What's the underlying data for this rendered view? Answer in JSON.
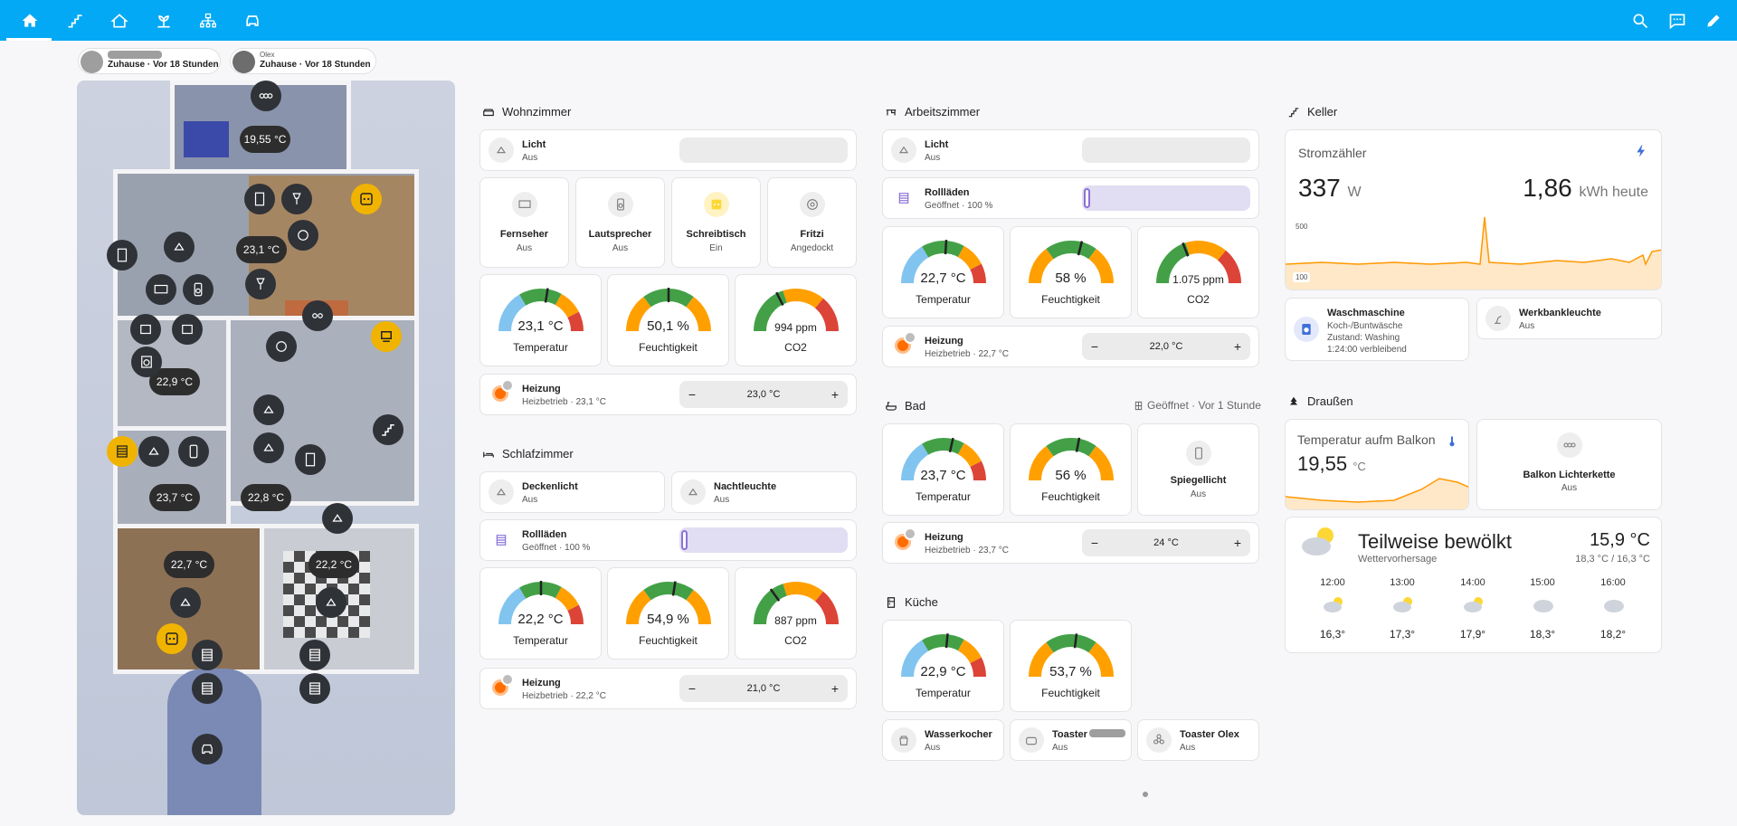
{
  "colors": {
    "accent": "#03a9f4",
    "on_yellow": "#fdd835",
    "heat_orange": "#ff6d00",
    "cover_purple": "#8b72d6",
    "gauge_blue": "#81c4ef",
    "gauge_green": "#43a047",
    "gauge_orange": "#ffa000",
    "gauge_red": "#db4437"
  },
  "toolbar": {
    "views": [
      "home-icon",
      "stairs-icon",
      "house-icon",
      "garden-icon",
      "network-icon",
      "car-icon"
    ],
    "search_icon": "search-icon",
    "assist_icon": "assist-icon",
    "edit_icon": "pencil-icon"
  },
  "persons": [
    {
      "name": "",
      "status": "Zuhause · Vor 18 Stunden"
    },
    {
      "name": "Olex",
      "status": "Zuhause · Vor 18 Stunden"
    }
  ],
  "floorplan": {
    "temps": [
      "19,55 °C",
      "23,1 °C",
      "22,9 °C",
      "23,7 °C",
      "22,8 °C",
      "22,7 °C",
      "22,2 °C"
    ]
  },
  "wohnzimmer": {
    "title": "Wohnzimmer",
    "light": {
      "name": "Licht",
      "state": "Aus"
    },
    "devices": [
      {
        "name": "Fernseher",
        "state": "Aus",
        "icon": "tv-icon"
      },
      {
        "name": "Lautsprecher",
        "state": "Aus",
        "icon": "speaker-icon"
      },
      {
        "name": "Schreibtisch",
        "state": "Ein",
        "icon": "socket-icon"
      },
      {
        "name": "Fritzi",
        "state": "Angedockt",
        "icon": "robot-vacuum-icon"
      }
    ],
    "gauges": [
      {
        "value": "23,1 °C",
        "label": "Temperatur",
        "ratio": 0.55
      },
      {
        "value": "50,1 %",
        "label": "Feuchtigkeit",
        "ratio": 0.5
      },
      {
        "value": "994 ppm",
        "label": "CO2",
        "ratio": 0.35
      }
    ],
    "heating": {
      "name": "Heizung",
      "state": "Heizbetrieb · 23,1 °C",
      "target": "23,0 °C",
      "minus": "−",
      "plus": "+"
    }
  },
  "schlafzimmer": {
    "title": "Schlafzimmer",
    "lights": [
      {
        "name": "Deckenlicht",
        "state": "Aus"
      },
      {
        "name": "Nachtleuchte",
        "state": "Aus"
      }
    ],
    "cover": {
      "name": "Rollläden",
      "state": "Geöffnet · 100 %"
    },
    "gauges": [
      {
        "value": "22,2 °C",
        "label": "Temperatur",
        "ratio": 0.5
      },
      {
        "value": "54,9 %",
        "label": "Feuchtigkeit",
        "ratio": 0.55
      },
      {
        "value": "887 ppm",
        "label": "CO2",
        "ratio": 0.3
      }
    ],
    "heating": {
      "name": "Heizung",
      "state": "Heizbetrieb · 22,2 °C",
      "target": "21,0 °C",
      "minus": "−",
      "plus": "+"
    }
  },
  "arbeitszimmer": {
    "title": "Arbeitszimmer",
    "light": {
      "name": "Licht",
      "state": "Aus"
    },
    "cover": {
      "name": "Rollläden",
      "state": "Geöffnet · 100 %"
    },
    "gauges": [
      {
        "value": "22,7 °C",
        "label": "Temperatur",
        "ratio": 0.52
      },
      {
        "value": "58 %",
        "label": "Feuchtigkeit",
        "ratio": 0.58
      },
      {
        "value": "1.075 ppm",
        "label": "CO2",
        "ratio": 0.38
      }
    ],
    "heating": {
      "name": "Heizung",
      "state": "Heizbetrieb · 22,7 °C",
      "target": "22,0 °C",
      "minus": "−",
      "plus": "+"
    }
  },
  "bad": {
    "title": "Bad",
    "window_status": "Geöffnet · Vor 1 Stunde",
    "gauges": [
      {
        "value": "23,7 °C",
        "label": "Temperatur",
        "ratio": 0.57
      },
      {
        "value": "56 %",
        "label": "Feuchtigkeit",
        "ratio": 0.56
      }
    ],
    "mirror": {
      "name": "Spiegellicht",
      "state": "Aus"
    },
    "heating": {
      "name": "Heizung",
      "state": "Heizbetrieb · 23,7 °C",
      "target": "24 °C",
      "minus": "−",
      "plus": "+"
    }
  },
  "kueche": {
    "title": "Küche",
    "gauges": [
      {
        "value": "22,9 °C",
        "label": "Temperatur",
        "ratio": 0.53
      },
      {
        "value": "53,7 %",
        "label": "Feuchtigkeit",
        "ratio": 0.54
      }
    ],
    "devices": [
      {
        "name": "Wasserkocher",
        "state": "Aus"
      },
      {
        "name": "Toaster",
        "state": "Aus"
      },
      {
        "name": "Toaster Olex",
        "state": "Aus"
      }
    ]
  },
  "keller": {
    "title": "Keller",
    "meter": {
      "name": "Stromzähler",
      "power": "337",
      "power_unit": "W",
      "energy": "1,86",
      "energy_unit": "kWh heute",
      "axis_hi": "500",
      "axis_lo": "100"
    },
    "washer": {
      "name": "Waschmaschine",
      "line1": "Koch-/Buntwäsche",
      "line2": "Zustand: Washing",
      "line3": "1:24:00 verbleibend"
    },
    "bench": {
      "name": "Werkbankleuchte",
      "state": "Aus"
    }
  },
  "draussen": {
    "title": "Draußen",
    "balcony": {
      "name": "Temperatur aufm Balkon",
      "value": "19,55",
      "unit": "°C"
    },
    "chain": {
      "name": "Balkon Lichterkette",
      "state": "Aus"
    },
    "weather": {
      "condition": "Teilweise bewölkt",
      "source": "Wettervorhersage",
      "temp": "15,9 °C",
      "range": "18,3 °C / 16,3 °C",
      "forecast": [
        {
          "time": "12:00",
          "temp": "16,3°"
        },
        {
          "time": "13:00",
          "temp": "17,3°"
        },
        {
          "time": "14:00",
          "temp": "17,9°"
        },
        {
          "time": "15:00",
          "temp": "18,3°"
        },
        {
          "time": "16:00",
          "temp": "18,2°"
        }
      ]
    }
  }
}
